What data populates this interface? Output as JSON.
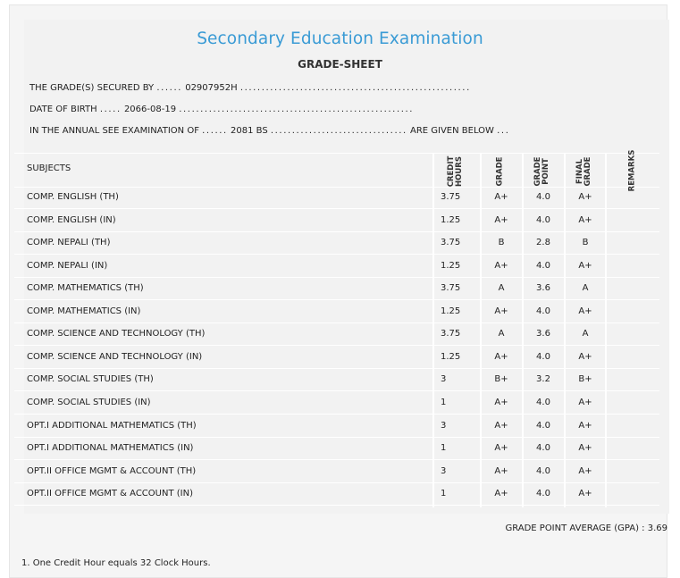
{
  "header": {
    "title": "Secondary Education Examination",
    "subtitle": "GRADE-SHEET"
  },
  "info": {
    "secured_by_label": "THE GRADE(S) SECURED BY",
    "secured_by_value": "02907952H",
    "dob_label": "DATE OF BIRTH",
    "dob_value": "2066-08-19",
    "exam_label": "IN THE ANNUAL SEE EXAMINATION OF",
    "exam_value": "2081 BS",
    "exam_suffix": "ARE GIVEN BELOW"
  },
  "table": {
    "columns": {
      "subjects": "SUBJECTS",
      "credit_hours": "CREDIT\nHOURS",
      "grade": "GRADE",
      "grade_point": "GRADE\nPOINT",
      "final_grade": "FINAL\nGRADE",
      "remarks": "REMARKS"
    },
    "rows": [
      {
        "subject": "COMP. ENGLISH (TH)",
        "credit_hours": "3.75",
        "grade": "A+",
        "grade_point": "4.0",
        "final_grade": "A+",
        "remarks": ""
      },
      {
        "subject": "COMP. ENGLISH (IN)",
        "credit_hours": "1.25",
        "grade": "A+",
        "grade_point": "4.0",
        "final_grade": "A+",
        "remarks": ""
      },
      {
        "subject": "COMP. NEPALI (TH)",
        "credit_hours": "3.75",
        "grade": "B",
        "grade_point": "2.8",
        "final_grade": "B",
        "remarks": ""
      },
      {
        "subject": "COMP. NEPALI (IN)",
        "credit_hours": "1.25",
        "grade": "A+",
        "grade_point": "4.0",
        "final_grade": "A+",
        "remarks": ""
      },
      {
        "subject": "COMP. MATHEMATICS (TH)",
        "credit_hours": "3.75",
        "grade": "A",
        "grade_point": "3.6",
        "final_grade": "A",
        "remarks": ""
      },
      {
        "subject": "COMP. MATHEMATICS (IN)",
        "credit_hours": "1.25",
        "grade": "A+",
        "grade_point": "4.0",
        "final_grade": "A+",
        "remarks": ""
      },
      {
        "subject": "COMP. SCIENCE AND TECHNOLOGY (TH)",
        "credit_hours": "3.75",
        "grade": "A",
        "grade_point": "3.6",
        "final_grade": "A",
        "remarks": ""
      },
      {
        "subject": "COMP. SCIENCE AND TECHNOLOGY (IN)",
        "credit_hours": "1.25",
        "grade": "A+",
        "grade_point": "4.0",
        "final_grade": "A+",
        "remarks": ""
      },
      {
        "subject": "COMP. SOCIAL STUDIES (TH)",
        "credit_hours": "3",
        "grade": "B+",
        "grade_point": "3.2",
        "final_grade": "B+",
        "remarks": ""
      },
      {
        "subject": "COMP. SOCIAL STUDIES (IN)",
        "credit_hours": "1",
        "grade": "A+",
        "grade_point": "4.0",
        "final_grade": "A+",
        "remarks": ""
      },
      {
        "subject": "OPT.I ADDITIONAL MATHEMATICS (TH)",
        "credit_hours": "3",
        "grade": "A+",
        "grade_point": "4.0",
        "final_grade": "A+",
        "remarks": ""
      },
      {
        "subject": "OPT.I ADDITIONAL MATHEMATICS (IN)",
        "credit_hours": "1",
        "grade": "A+",
        "grade_point": "4.0",
        "final_grade": "A+",
        "remarks": ""
      },
      {
        "subject": "OPT.II OFFICE MGMT & ACCOUNT (TH)",
        "credit_hours": "3",
        "grade": "A+",
        "grade_point": "4.0",
        "final_grade": "A+",
        "remarks": ""
      },
      {
        "subject": "OPT.II OFFICE MGMT & ACCOUNT (IN)",
        "credit_hours": "1",
        "grade": "A+",
        "grade_point": "4.0",
        "final_grade": "A+",
        "remarks": ""
      }
    ]
  },
  "summary": {
    "gpa_label": "GRADE POINT AVERAGE (GPA) :",
    "gpa_value": "3.69"
  },
  "footnote": "1. One Credit Hour equals 32 Clock Hours.",
  "colors": {
    "title": "#3a9bd5",
    "card_bg": "#f2f2f2",
    "rule": "#ffffff"
  }
}
